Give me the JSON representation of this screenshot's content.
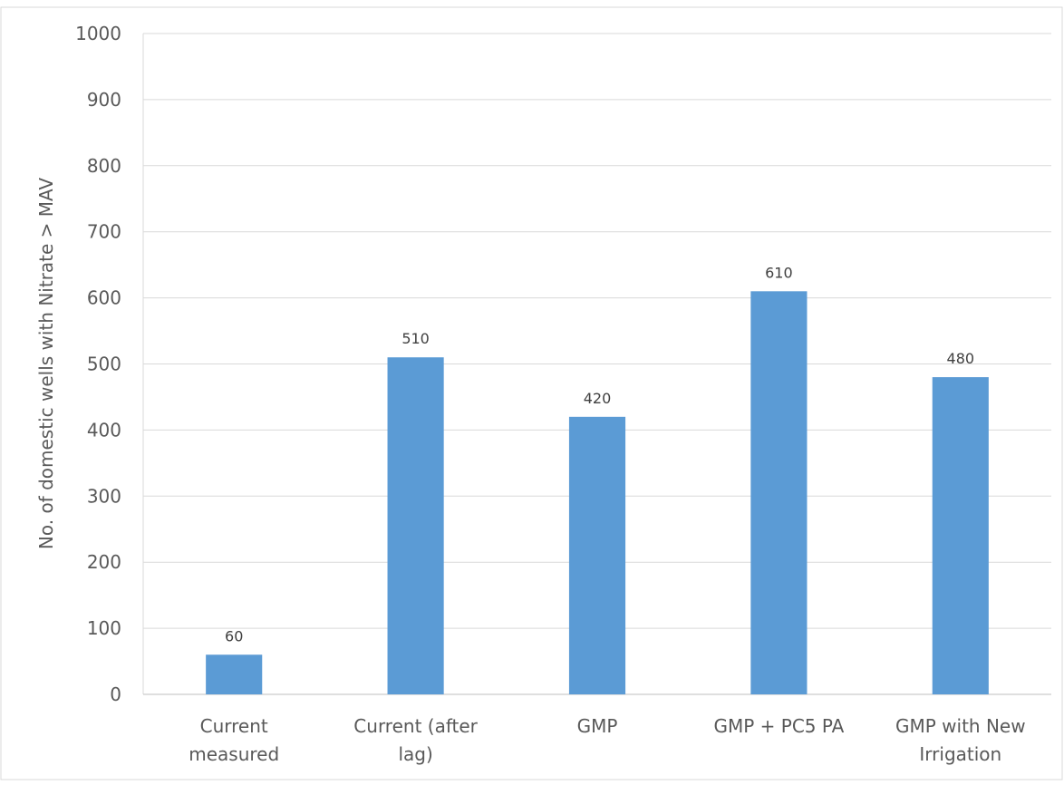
{
  "chart_data": {
    "type": "bar",
    "title": "",
    "xlabel": "",
    "ylabel": "No. of domestic wells with Nitrate > MAV",
    "categories": [
      [
        "Current",
        "measured"
      ],
      [
        "Current (after",
        "lag)"
      ],
      [
        "GMP"
      ],
      [
        "GMP + PC5 PA"
      ],
      [
        "GMP with New",
        "Irrigation"
      ]
    ],
    "values": [
      60,
      510,
      420,
      610,
      480
    ],
    "ylim": [
      0,
      1000
    ],
    "yticks": [
      0,
      100,
      200,
      300,
      400,
      500,
      600,
      700,
      800,
      900,
      1000
    ],
    "grid": true,
    "legend": "none",
    "colors": {
      "bar": "#5b9bd5",
      "grid": "#d9d9d9",
      "axis": "#bfbfbf",
      "frame": "#d9d9d9"
    }
  }
}
